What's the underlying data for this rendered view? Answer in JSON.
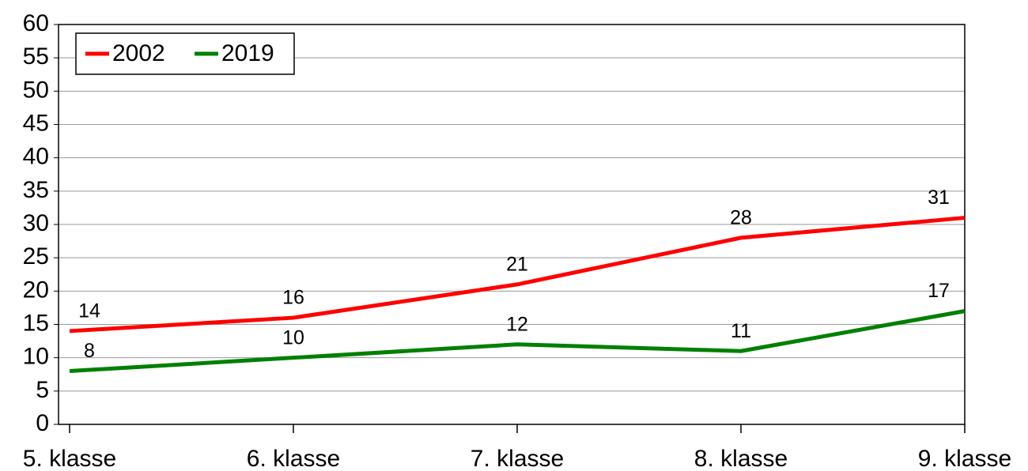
{
  "chart_data": {
    "type": "line",
    "categories": [
      "5. klasse",
      "6. klasse",
      "7. klasse",
      "8. klasse",
      "9. klasse"
    ],
    "series": [
      {
        "name": "2002",
        "color": "#ff0000",
        "values": [
          14,
          16,
          21,
          28,
          31
        ]
      },
      {
        "name": "2019",
        "color": "#008000",
        "values": [
          8,
          10,
          12,
          11,
          17
        ]
      }
    ],
    "ylim": [
      0,
      60
    ],
    "yticks": [
      0,
      5,
      10,
      15,
      20,
      25,
      30,
      35,
      40,
      45,
      50,
      55,
      60
    ],
    "grid": true,
    "legend": "top-left"
  }
}
